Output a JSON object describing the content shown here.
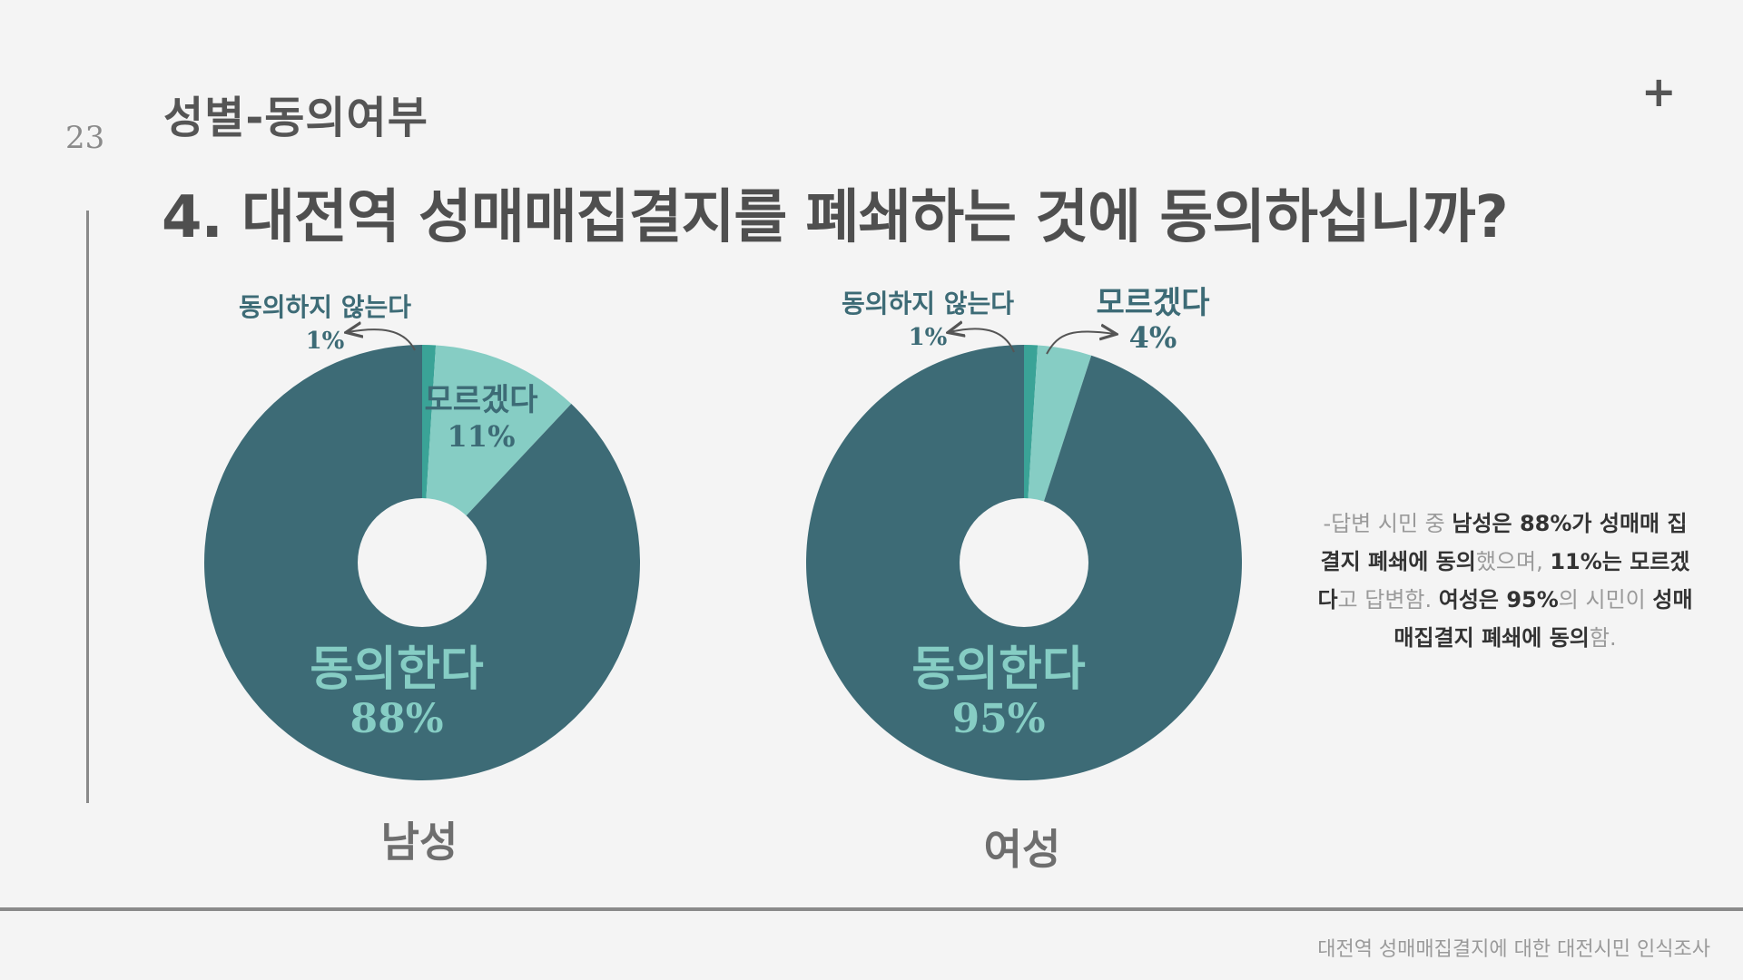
{
  "page_number": "23",
  "section_title": "성별-동의여부",
  "question": "4. 대전역 성매매집결지를 폐쇄하는 것에 동의하십니까?",
  "colors": {
    "agree": "#3d6b76",
    "unsure": "#86cdc4",
    "disagree": "#3aa397",
    "agree_label": "#86cdc4"
  },
  "icons": {
    "top_right": "plus-icon"
  },
  "chart_data": [
    {
      "type": "pie",
      "title": "남성",
      "slices": [
        {
          "name": "동의하지 않는다",
          "value": 1,
          "label": "1%"
        },
        {
          "name": "모르겠다",
          "value": 11,
          "label": "11%"
        },
        {
          "name": "동의한다",
          "value": 88,
          "label": "88%"
        }
      ]
    },
    {
      "type": "pie",
      "title": "여성",
      "slices": [
        {
          "name": "동의하지 않는다",
          "value": 1,
          "label": "1%"
        },
        {
          "name": "모르겠다",
          "value": 4,
          "label": "4%"
        },
        {
          "name": "동의한다",
          "value": 95,
          "label": "95%"
        }
      ]
    }
  ],
  "summary": {
    "p1": "-답변 시민 중 ",
    "b1": "남성은 88%가 성매매 집결지 폐쇄에 동의",
    "p2": "했으며, ",
    "b2": "11%는 모르겠다",
    "p3": "고 답변함. ",
    "b3": "여성은 95%",
    "p4": "의 시민이 ",
    "b4": "성매매집결지 폐쇄에 동의",
    "p5": "함."
  },
  "footer": "대전역 성매매집결지에 대한 대전시민 인식조사"
}
